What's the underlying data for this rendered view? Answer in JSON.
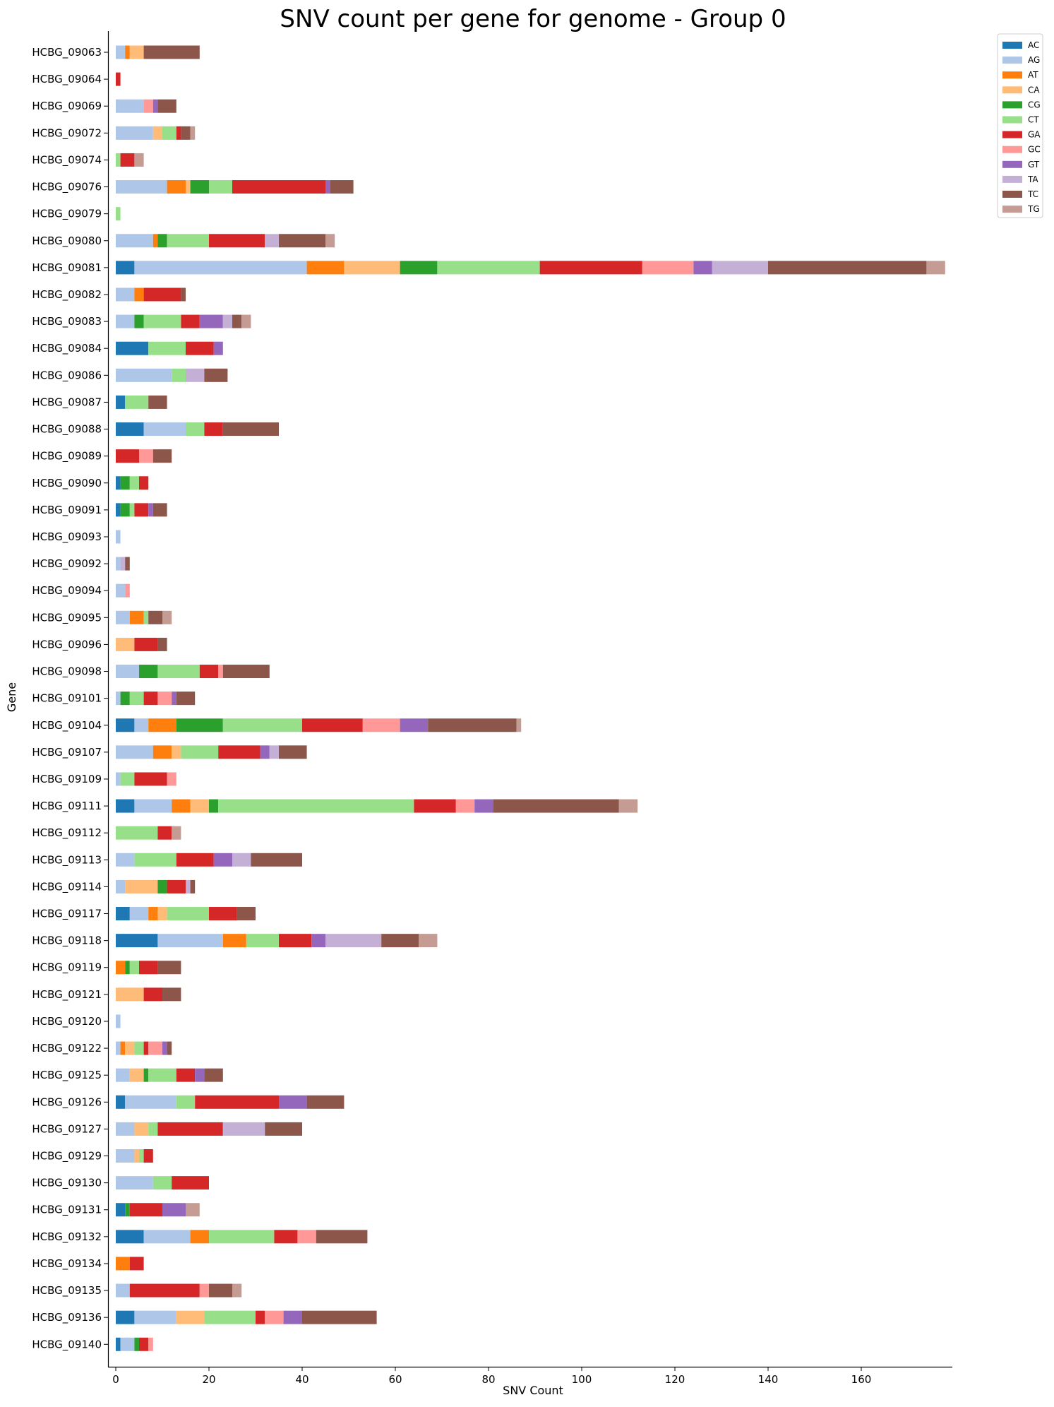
{
  "chart_data": {
    "type": "bar",
    "orientation": "horizontal",
    "stacked": true,
    "title": "SNV count per gene for genome - Group 0",
    "xlabel": "SNV Count",
    "ylabel": "Gene",
    "xlim": [
      -1.5,
      180
    ],
    "xticks": [
      0,
      20,
      40,
      60,
      80,
      100,
      120,
      140,
      160
    ],
    "legend_position": "upper-right-outside",
    "grid": false,
    "categories": [
      "HCBG_09063",
      "HCBG_09064",
      "HCBG_09069",
      "HCBG_09072",
      "HCBG_09074",
      "HCBG_09076",
      "HCBG_09079",
      "HCBG_09080",
      "HCBG_09081",
      "HCBG_09082",
      "HCBG_09083",
      "HCBG_09084",
      "HCBG_09086",
      "HCBG_09087",
      "HCBG_09088",
      "HCBG_09089",
      "HCBG_09090",
      "HCBG_09091",
      "HCBG_09093",
      "HCBG_09092",
      "HCBG_09094",
      "HCBG_09095",
      "HCBG_09096",
      "HCBG_09098",
      "HCBG_09101",
      "HCBG_09104",
      "HCBG_09107",
      "HCBG_09109",
      "HCBG_09111",
      "HCBG_09112",
      "HCBG_09113",
      "HCBG_09114",
      "HCBG_09117",
      "HCBG_09118",
      "HCBG_09119",
      "HCBG_09121",
      "HCBG_09120",
      "HCBG_09122",
      "HCBG_09125",
      "HCBG_09126",
      "HCBG_09127",
      "HCBG_09129",
      "HCBG_09130",
      "HCBG_09131",
      "HCBG_09132",
      "HCBG_09134",
      "HCBG_09135",
      "HCBG_09136",
      "HCBG_09140"
    ],
    "series": [
      {
        "name": "AC",
        "color": "#1f77b4",
        "values": [
          0,
          0,
          0,
          0,
          0,
          0,
          0,
          0,
          4,
          0,
          0,
          7,
          0,
          2,
          6,
          0,
          1,
          1,
          0,
          0,
          0,
          0,
          0,
          0,
          0,
          4,
          0,
          0,
          4,
          0,
          0,
          0,
          3,
          9,
          0,
          0,
          0,
          0,
          0,
          2,
          0,
          0,
          0,
          2,
          6,
          0,
          0,
          4,
          1
        ]
      },
      {
        "name": "AG",
        "color": "#aec7e8",
        "values": [
          2,
          0,
          6,
          8,
          0,
          11,
          0,
          8,
          37,
          4,
          4,
          0,
          12,
          0,
          9,
          0,
          0,
          0,
          1,
          1,
          2,
          3,
          0,
          5,
          1,
          3,
          8,
          1,
          8,
          0,
          4,
          2,
          4,
          14,
          0,
          0,
          1,
          1,
          3,
          11,
          4,
          4,
          8,
          0,
          10,
          0,
          3,
          9,
          3
        ]
      },
      {
        "name": "AT",
        "color": "#ff7f0e",
        "values": [
          1,
          0,
          0,
          0,
          0,
          4,
          0,
          1,
          8,
          2,
          0,
          0,
          0,
          0,
          0,
          0,
          0,
          0,
          0,
          0,
          0,
          3,
          0,
          0,
          0,
          6,
          4,
          0,
          4,
          0,
          0,
          0,
          2,
          5,
          2,
          0,
          0,
          1,
          0,
          0,
          0,
          0,
          0,
          0,
          4,
          3,
          0,
          0,
          0
        ]
      },
      {
        "name": "CA",
        "color": "#ffbb78",
        "values": [
          3,
          0,
          0,
          2,
          0,
          1,
          0,
          0,
          12,
          0,
          0,
          0,
          0,
          0,
          0,
          0,
          0,
          0,
          0,
          0,
          0,
          0,
          4,
          0,
          0,
          0,
          2,
          0,
          4,
          0,
          0,
          7,
          2,
          0,
          0,
          6,
          0,
          2,
          3,
          0,
          3,
          1,
          0,
          0,
          0,
          0,
          0,
          6,
          0
        ]
      },
      {
        "name": "CG",
        "color": "#2ca02c",
        "values": [
          0,
          0,
          0,
          0,
          0,
          4,
          0,
          2,
          8,
          0,
          2,
          0,
          0,
          0,
          0,
          0,
          2,
          2,
          0,
          0,
          0,
          0,
          0,
          4,
          2,
          10,
          0,
          0,
          2,
          0,
          0,
          2,
          0,
          0,
          1,
          0,
          0,
          0,
          1,
          0,
          0,
          0,
          0,
          1,
          0,
          0,
          0,
          0,
          1
        ]
      },
      {
        "name": "CT",
        "color": "#98df8a",
        "values": [
          0,
          0,
          0,
          3,
          1,
          5,
          1,
          9,
          22,
          0,
          8,
          8,
          3,
          5,
          4,
          0,
          2,
          1,
          0,
          0,
          0,
          1,
          0,
          9,
          3,
          17,
          8,
          3,
          42,
          9,
          9,
          0,
          9,
          7,
          2,
          0,
          0,
          2,
          6,
          4,
          2,
          1,
          4,
          0,
          14,
          0,
          0,
          11,
          0
        ]
      },
      {
        "name": "GA",
        "color": "#d62728",
        "values": [
          0,
          1,
          0,
          1,
          3,
          20,
          0,
          12,
          22,
          8,
          4,
          6,
          0,
          0,
          4,
          5,
          2,
          3,
          0,
          0,
          0,
          0,
          5,
          4,
          3,
          13,
          9,
          7,
          9,
          3,
          8,
          4,
          6,
          7,
          4,
          4,
          0,
          1,
          4,
          18,
          14,
          2,
          8,
          7,
          5,
          3,
          15,
          2,
          2
        ]
      },
      {
        "name": "GC",
        "color": "#ff9896",
        "values": [
          0,
          0,
          2,
          0,
          0,
          0,
          0,
          0,
          11,
          0,
          0,
          0,
          0,
          0,
          0,
          3,
          0,
          0,
          0,
          0,
          1,
          0,
          0,
          1,
          3,
          8,
          0,
          2,
          4,
          0,
          0,
          0,
          0,
          0,
          0,
          0,
          0,
          3,
          0,
          0,
          0,
          0,
          0,
          0,
          4,
          0,
          2,
          4,
          1
        ]
      },
      {
        "name": "GT",
        "color": "#9467bd",
        "values": [
          0,
          0,
          1,
          0,
          0,
          1,
          0,
          0,
          4,
          0,
          5,
          2,
          0,
          0,
          0,
          0,
          0,
          1,
          0,
          0,
          0,
          0,
          0,
          0,
          1,
          6,
          2,
          0,
          4,
          0,
          4,
          0,
          0,
          3,
          0,
          0,
          0,
          1,
          2,
          6,
          0,
          0,
          0,
          5,
          0,
          0,
          0,
          4,
          0
        ]
      },
      {
        "name": "TA",
        "color": "#c5b0d5",
        "values": [
          0,
          0,
          0,
          0,
          0,
          0,
          0,
          3,
          12,
          0,
          2,
          0,
          4,
          0,
          0,
          0,
          0,
          0,
          0,
          1,
          0,
          0,
          0,
          0,
          0,
          0,
          2,
          0,
          0,
          0,
          4,
          1,
          0,
          12,
          0,
          0,
          0,
          0,
          0,
          0,
          9,
          0,
          0,
          0,
          0,
          0,
          0,
          0,
          0
        ]
      },
      {
        "name": "TC",
        "color": "#8c564b",
        "values": [
          12,
          0,
          4,
          2,
          0,
          5,
          0,
          10,
          34,
          1,
          2,
          0,
          5,
          4,
          12,
          4,
          0,
          3,
          0,
          1,
          0,
          3,
          2,
          10,
          4,
          19,
          6,
          0,
          27,
          0,
          11,
          1,
          4,
          8,
          5,
          4,
          0,
          1,
          4,
          8,
          8,
          0,
          0,
          0,
          11,
          0,
          5,
          16,
          0
        ]
      },
      {
        "name": "TG",
        "color": "#c49c94",
        "values": [
          0,
          0,
          0,
          1,
          2,
          0,
          0,
          2,
          4,
          0,
          2,
          0,
          0,
          0,
          0,
          0,
          0,
          0,
          0,
          0,
          0,
          2,
          0,
          0,
          0,
          1,
          0,
          0,
          4,
          2,
          0,
          0,
          0,
          4,
          0,
          0,
          0,
          0,
          0,
          0,
          0,
          0,
          0,
          3,
          0,
          0,
          2,
          0,
          0
        ]
      }
    ]
  }
}
